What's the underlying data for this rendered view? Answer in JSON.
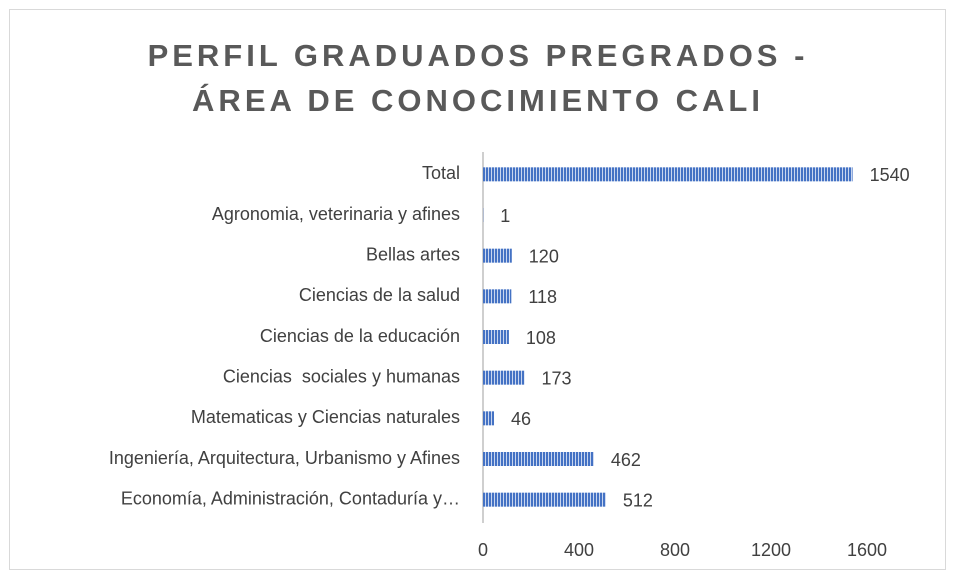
{
  "chart_data": {
    "type": "bar",
    "orientation": "horizontal",
    "title": [
      "PERFIL GRADUADOS PREGRADOS -",
      "ÁREA DE CONOCIMIENTO CALI"
    ],
    "categories": [
      "Total",
      "Agronomia, veterinaria y afines",
      "Bellas artes",
      "Ciencias de la salud",
      "Ciencias de la educación",
      "Ciencias  sociales y humanas",
      "Matematicas y Ciencias naturales",
      "Ingeniería, Arquitectura, Urbanismo y Afines",
      "Economía, Administración, Contaduría y…"
    ],
    "values": [
      1540,
      1,
      120,
      118,
      108,
      173,
      46,
      462,
      512
    ],
    "color": "#4472c4",
    "xlim": [
      0,
      1600
    ],
    "xticks": [
      0,
      400,
      800,
      1200,
      1600
    ],
    "grid": false
  }
}
